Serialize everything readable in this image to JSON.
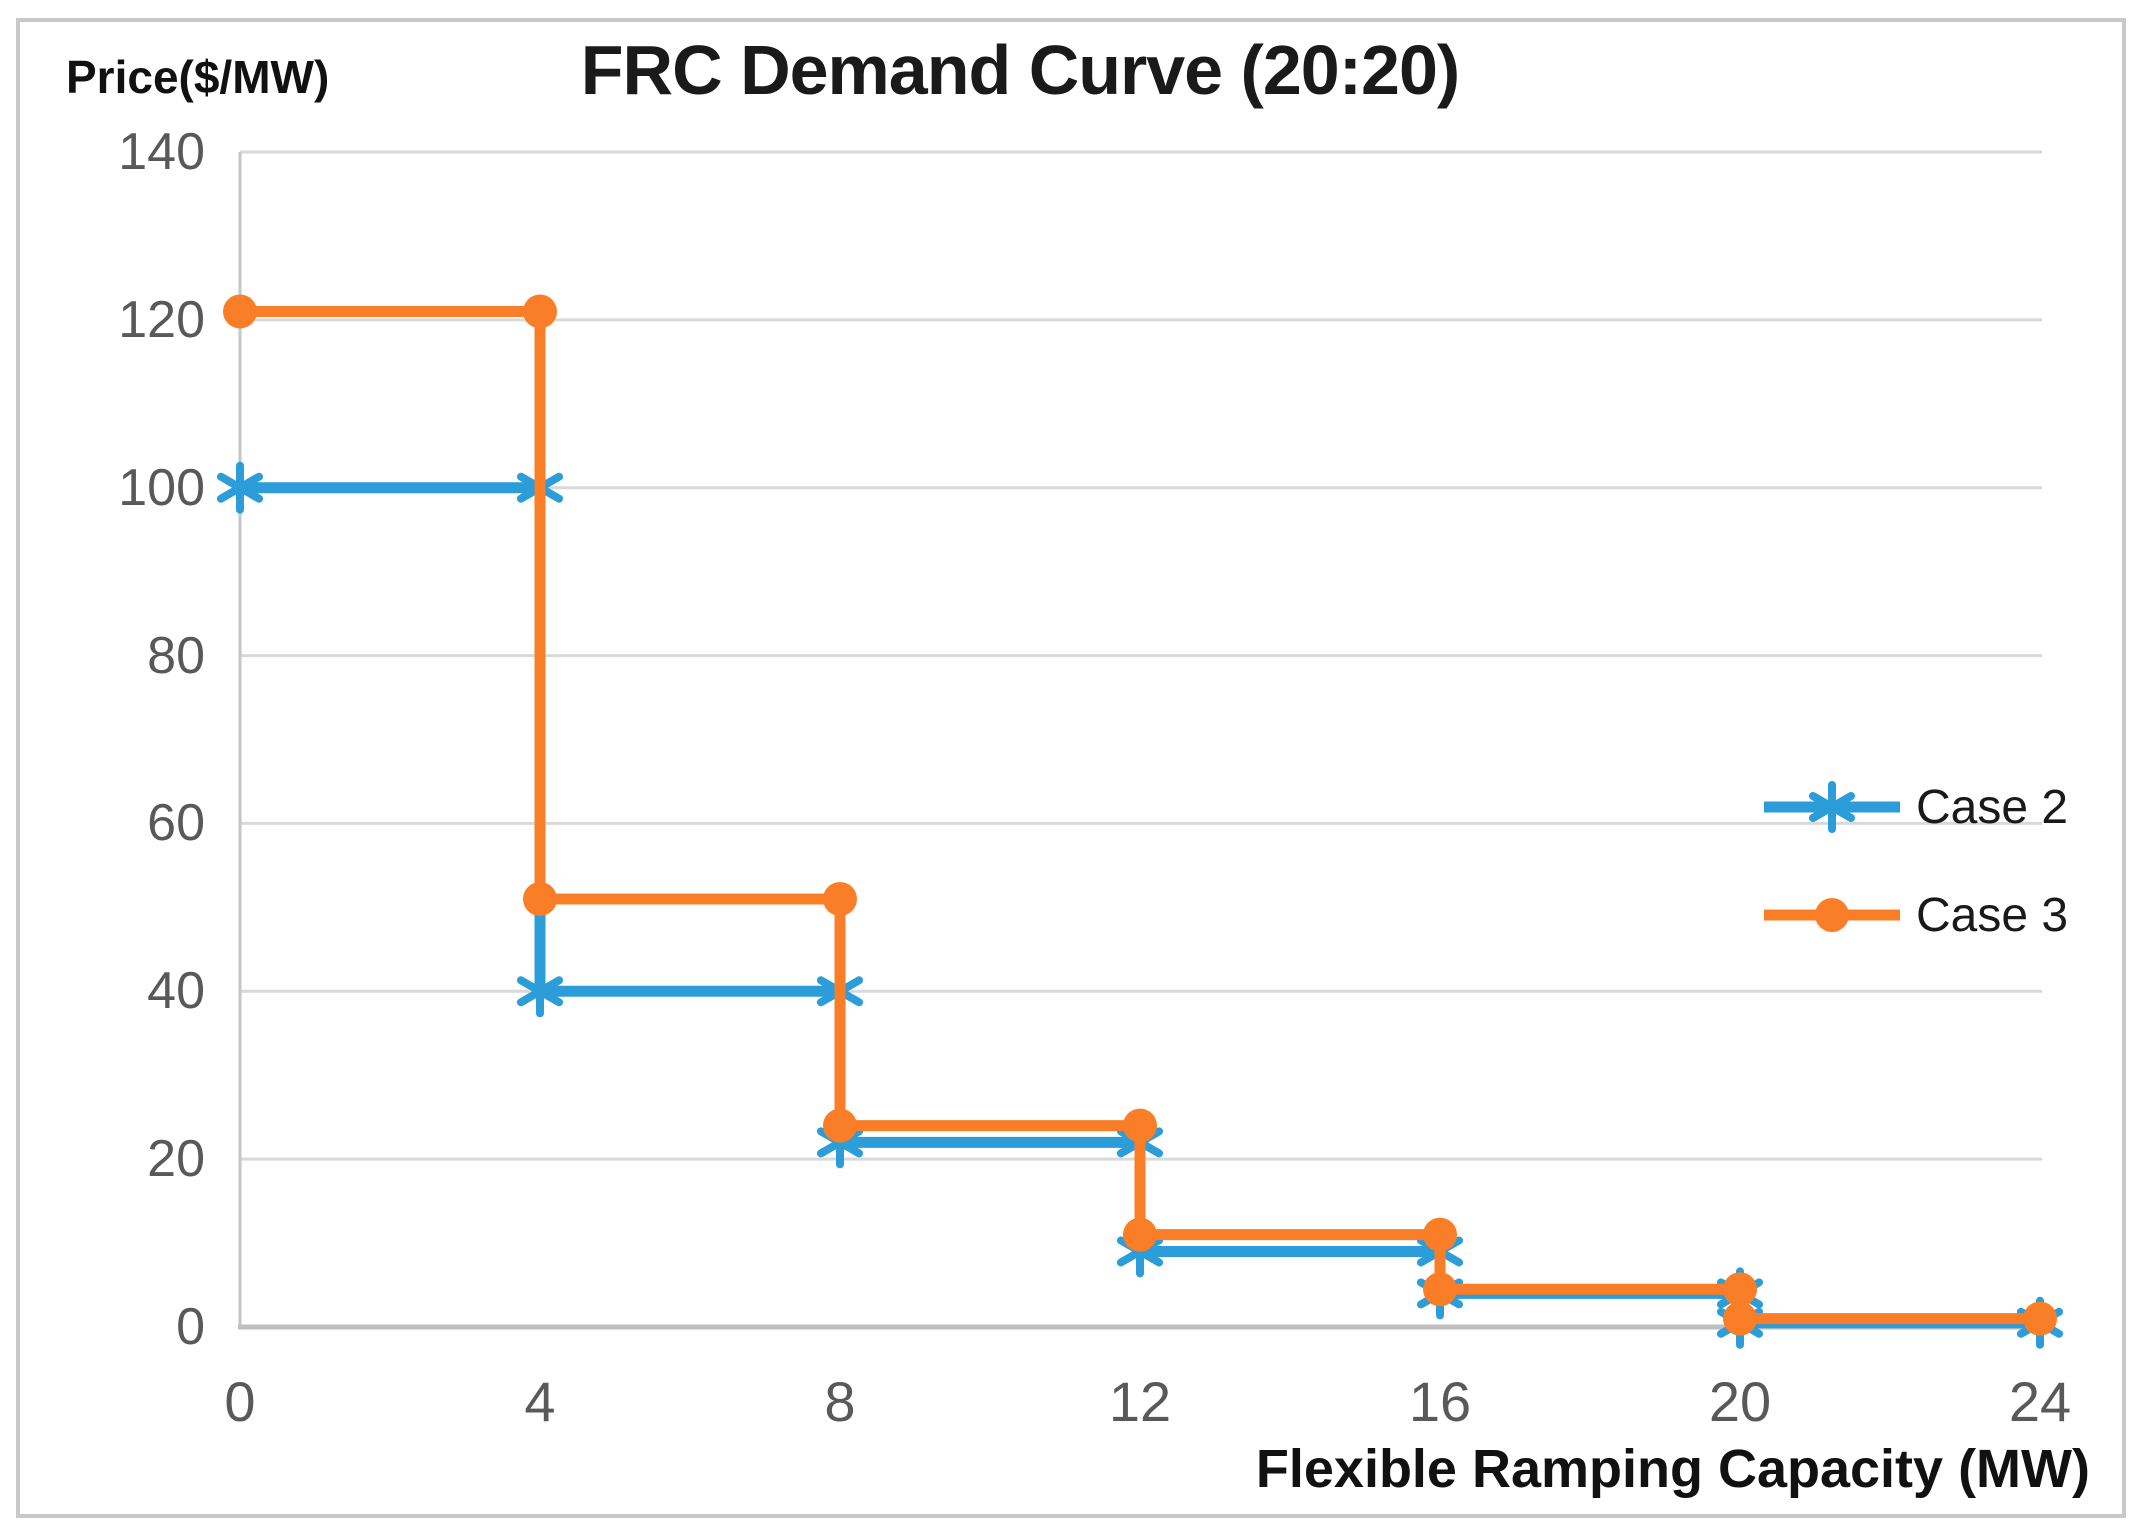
{
  "frame": {
    "border_color": "#C9C9C9"
  },
  "chart_data": {
    "type": "line",
    "subtype": "step",
    "title": "FRC Demand Curve (20:20)",
    "ylabel": "Price($/MW)",
    "xlabel": "Flexible Ramping Capacity (MW)",
    "xlim": [
      0,
      24
    ],
    "ylim": [
      0,
      140
    ],
    "x_ticks": [
      0,
      4,
      8,
      12,
      16,
      20,
      24
    ],
    "y_ticks": [
      0,
      20,
      40,
      60,
      80,
      100,
      120,
      140
    ],
    "grid": "horizontal-only",
    "legend_position": "center-right",
    "colors": {
      "gridline": "#D9D9D9",
      "axis_line": "#BFBFBF",
      "y_axis_line": "#C6C6C6",
      "tick_text": "#595959",
      "title_text": "#1A1A1A"
    },
    "series": [
      {
        "name": "Case 2",
        "color": "#2C9DD8",
        "marker": "asterisk",
        "step_edges": [
          0,
          4,
          8,
          12,
          16,
          20,
          24
        ],
        "step_values": [
          100,
          40,
          22,
          9,
          4,
          0.5
        ]
      },
      {
        "name": "Case 3",
        "color": "#F97E27",
        "marker": "circle",
        "step_edges": [
          0,
          4,
          8,
          12,
          16,
          20,
          24
        ],
        "step_values": [
          121,
          51,
          24,
          11,
          4.5,
          1
        ]
      }
    ]
  }
}
